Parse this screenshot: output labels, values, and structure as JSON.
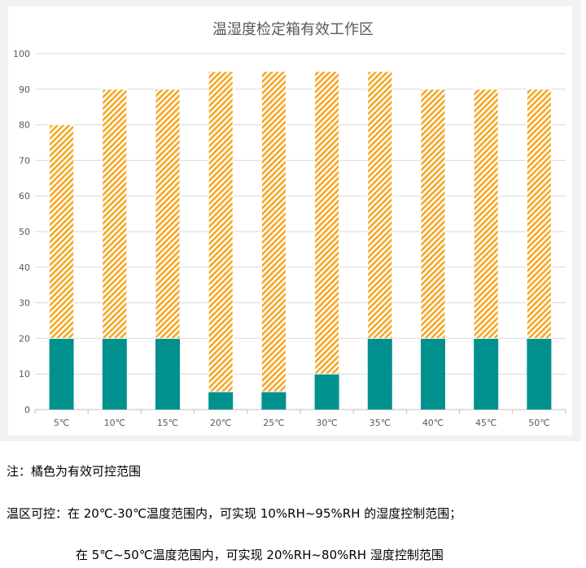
{
  "chart_data": {
    "type": "bar",
    "stacked": true,
    "title": "温湿度检定箱有效工作区",
    "categories": [
      "5℃",
      "10℃",
      "15℃",
      "20℃",
      "25℃",
      "30℃",
      "35℃",
      "40℃",
      "45℃",
      "50℃"
    ],
    "series": [
      {
        "role": "base",
        "values": [
          20,
          20,
          20,
          5,
          5,
          10,
          20,
          20,
          20,
          20
        ],
        "color": "#00918f"
      },
      {
        "role": "effective-range",
        "values": [
          60,
          70,
          70,
          90,
          90,
          85,
          75,
          70,
          70,
          70
        ],
        "color": "#f5a623",
        "pattern": "diagonal-hatch"
      }
    ],
    "ylim": [
      0,
      100
    ],
    "yticks": [
      0,
      10,
      20,
      30,
      40,
      50,
      60,
      70,
      80,
      90,
      100
    ],
    "grid": true,
    "legend": "none"
  },
  "notes": {
    "line1": "注：橘色为有效可控范围",
    "line2": "温区可控：在 20℃-30℃温度范围内，可实现 10%RH~95%RH 的湿度控制范围；",
    "line3": "在 5℃~50℃温度范围内，可实现 20%RH~80%RH 湿度控制范围"
  }
}
